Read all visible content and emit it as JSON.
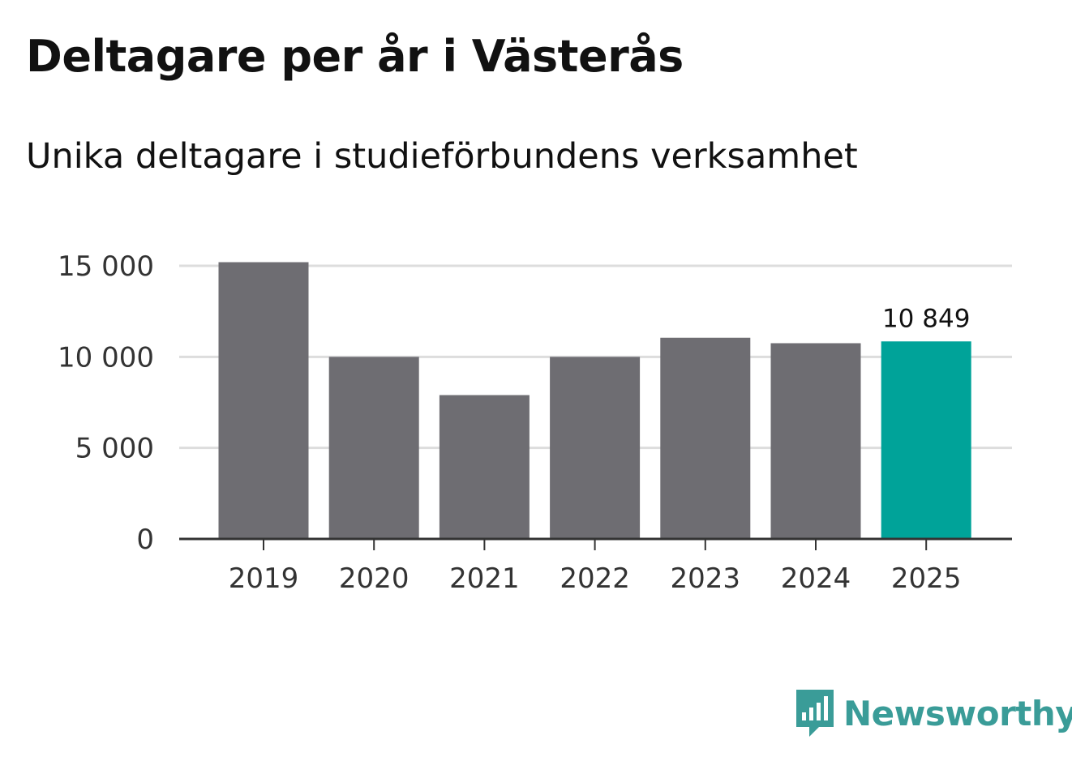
{
  "title": "Deltagare per år i Västerås",
  "subtitle": "Unika deltagare i studieförbundens verksamhet",
  "brand": {
    "name": "Newsworthy",
    "icon": "newsworthy-logo-icon"
  },
  "colors": {
    "bar": "#6e6d72",
    "highlight": "#00a399",
    "grid": "#dddddd",
    "axis": "#333333",
    "brand": "#3a9c98"
  },
  "chart_data": {
    "type": "bar",
    "title": "Deltagare per år i Västerås",
    "subtitle": "Unika deltagare i studieförbundens verksamhet",
    "xlabel": "",
    "ylabel": "",
    "categories": [
      "2019",
      "2020",
      "2021",
      "2022",
      "2023",
      "2024",
      "2025"
    ],
    "values": [
      15200,
      10000,
      7900,
      10000,
      11050,
      10750,
      10849
    ],
    "highlight_index": 6,
    "ylim": [
      0,
      15000
    ],
    "yticks": [
      0,
      5000,
      10000,
      15000
    ],
    "ytick_labels": [
      "0",
      "5 000",
      "10 000",
      "15 000"
    ],
    "grid": true,
    "data_labels": [
      {
        "index": 6,
        "text": "10 849"
      }
    ]
  }
}
